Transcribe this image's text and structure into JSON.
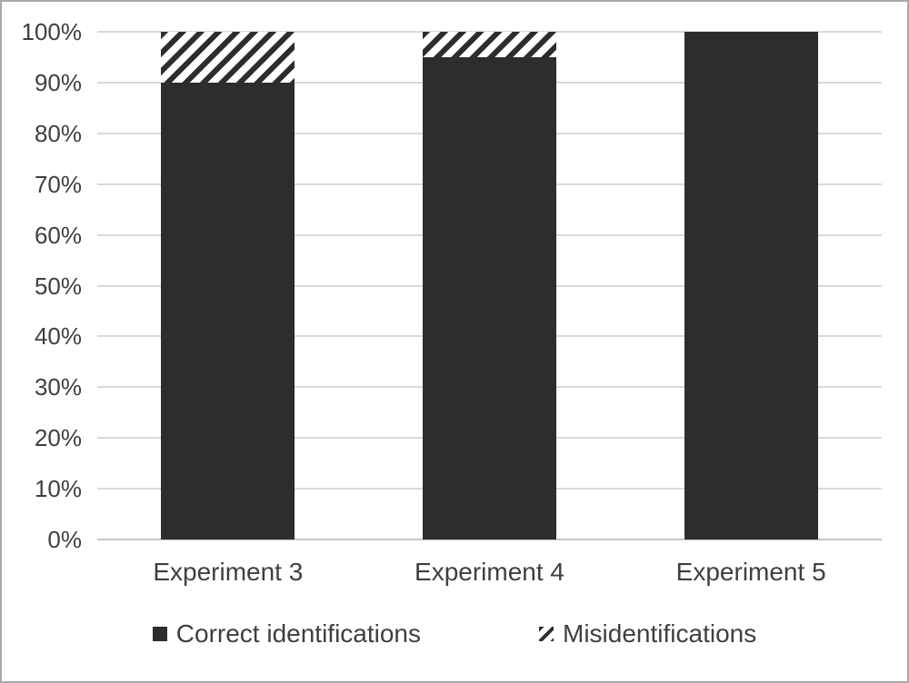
{
  "figure": {
    "background": "#ffffff",
    "border_color": "#aaaaaa",
    "gridline_color": "#d9d9d9",
    "axis_line_color": "#c6c6c6",
    "text_color": "#3f3f3f",
    "bar_color": "#2d2d2d"
  },
  "chart_data": {
    "type": "bar",
    "stacked": true,
    "title": "",
    "xlabel": "",
    "ylabel": "",
    "categories": [
      "Experiment 3",
      "Experiment 4",
      "Experiment 5"
    ],
    "series": [
      {
        "name": "Correct identifications",
        "style": "solid",
        "values": [
          90,
          95,
          100
        ]
      },
      {
        "name": "Misidentifications",
        "style": "hatched",
        "values": [
          10,
          5,
          0
        ]
      }
    ],
    "ylim": [
      0,
      100
    ],
    "y_tick_step": 10,
    "y_ticks": [
      "0%",
      "10%",
      "20%",
      "30%",
      "40%",
      "50%",
      "60%",
      "70%",
      "80%",
      "90%",
      "100%"
    ],
    "grid": "horizontal",
    "legend_position": "bottom",
    "legend": [
      {
        "swatch": "solid-square-icon",
        "label": "Correct identifications"
      },
      {
        "swatch": "hatched-square-icon",
        "label": "Misidentifications"
      }
    ]
  }
}
